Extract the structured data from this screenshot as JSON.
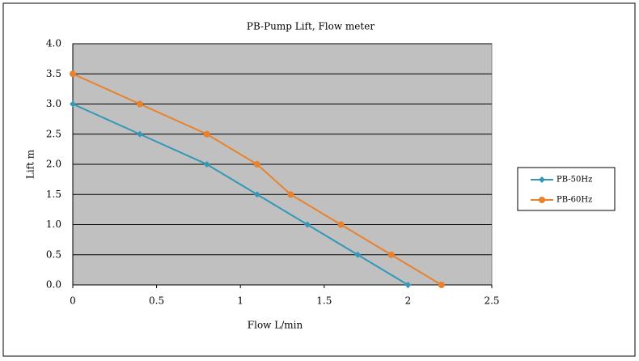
{
  "chart_data": {
    "type": "line",
    "title": "PB-Pump Lift, Flow meter",
    "x_label": "Flow  L/min",
    "y_label": "Lift m",
    "series": [
      {
        "name": "PB-50Hz",
        "color": "#3398b8",
        "marker": "diamond",
        "x": [
          0,
          0.4,
          0.8,
          1.1,
          1.4,
          1.7,
          2.0
        ],
        "values": [
          3,
          2.5,
          2,
          1.5,
          1,
          0.5,
          0
        ]
      },
      {
        "name": "PB-60Hz",
        "color": "#e8822c",
        "marker": "circle",
        "x": [
          0,
          0.4,
          0.8,
          1.1,
          1.3,
          1.6,
          1.9,
          2.2
        ],
        "values": [
          3.5,
          3,
          2.5,
          2,
          1.5,
          1,
          0.5,
          0
        ]
      }
    ],
    "xlim": [
      0,
      2.5
    ],
    "xticks": [
      0,
      0.5,
      1,
      1.5,
      2,
      2.5
    ],
    "ylim": [
      0,
      4
    ],
    "yticks": [
      {
        "value": 0,
        "label": "0.0"
      },
      0.5,
      {
        "value": 1,
        "label": "1.0"
      },
      1.5,
      {
        "value": 2,
        "label": "2.0"
      },
      2.5,
      {
        "value": 3,
        "label": "3.0"
      },
      3.5,
      {
        "value": 4,
        "label": "4.0"
      }
    ],
    "grid": true,
    "plot_background": "#c0c0c0",
    "legend": "right"
  }
}
